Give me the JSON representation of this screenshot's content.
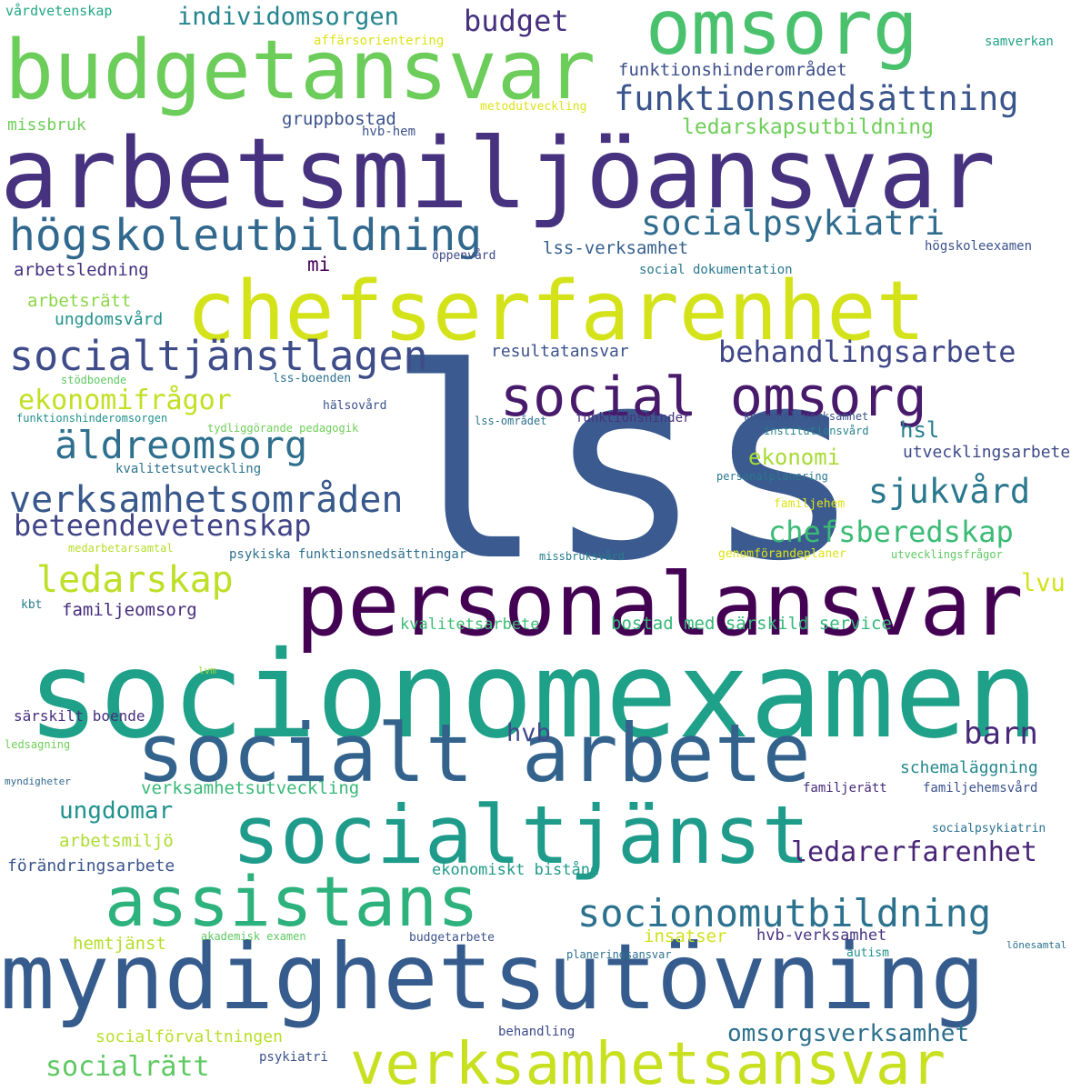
{
  "words": [
    {
      "text": "lss",
      "color": "#3b5a8f"
    },
    {
      "text": "socionomexamen",
      "color": "#1fa088"
    },
    {
      "text": "arbetsmiljöansvar",
      "color": "#46327e"
    },
    {
      "text": "myndighetsutövning",
      "color": "#365c8d"
    },
    {
      "text": "personalansvar",
      "color": "#440154"
    },
    {
      "text": "budgetansvar",
      "color": "#6ccd5a"
    },
    {
      "text": "chefserfarenhet",
      "color": "#d4e21a"
    },
    {
      "text": "socialtjänst",
      "color": "#1e9b8a"
    },
    {
      "text": "socialt arbete",
      "color": "#33638d"
    },
    {
      "text": "omsorg",
      "color": "#4ac16d"
    },
    {
      "text": "assistans",
      "color": "#2db27d"
    },
    {
      "text": "verksamhetsansvar",
      "color": "#c8e020"
    },
    {
      "text": "social omsorg",
      "color": "#481a6c"
    },
    {
      "text": "högskoleutbildning",
      "color": "#31688e"
    },
    {
      "text": "socialtjänstlagen",
      "color": "#3e4c8a"
    },
    {
      "text": "socionomutbildning",
      "color": "#2c728e"
    },
    {
      "text": "äldreomsorg",
      "color": "#2e6f8e"
    },
    {
      "text": "verksamhetsområden",
      "color": "#38588c"
    },
    {
      "text": "ledarskap",
      "color": "#bddf26"
    },
    {
      "text": "socialpsykiatri",
      "color": "#2f6c8e"
    },
    {
      "text": "funktionsnedsättning",
      "color": "#3a548c"
    },
    {
      "text": "sjukvård",
      "color": "#2a788e"
    },
    {
      "text": "behandlingsarbete",
      "color": "#3f4788"
    },
    {
      "text": "beteendevetenskap",
      "color": "#414487"
    },
    {
      "text": "chefsberedskap",
      "color": "#3bbb75"
    },
    {
      "text": "ekonomifrågor",
      "color": "#c2df23"
    },
    {
      "text": "ledarerfarenhet",
      "color": "#482576"
    },
    {
      "text": "omsorgsverksamhet",
      "color": "#2d708e"
    },
    {
      "text": "socialrätt",
      "color": "#5ec962"
    },
    {
      "text": "individomsorgen",
      "color": "#25858e"
    },
    {
      "text": "budget",
      "color": "#46307e"
    },
    {
      "text": "barn",
      "color": "#482979"
    },
    {
      "text": "ungdomar",
      "color": "#20928c"
    },
    {
      "text": "ledarskapsutbildning",
      "color": "#6ece58"
    },
    {
      "text": "hvb",
      "color": "#3e4989"
    },
    {
      "text": "hsl",
      "color": "#27808e"
    },
    {
      "text": "ekonomi",
      "color": "#a8db34"
    },
    {
      "text": "lvu",
      "color": "#d2e21b"
    },
    {
      "text": "funktionshinderområdet",
      "color": "#3d4e8a"
    },
    {
      "text": "gruppbostad",
      "color": "#3b528b"
    },
    {
      "text": "arbetsledning",
      "color": "#46337f"
    },
    {
      "text": "arbetsrätt",
      "color": "#8bd646"
    },
    {
      "text": "ungdomsvård",
      "color": "#21918c"
    },
    {
      "text": "mi",
      "color": "#440154"
    },
    {
      "text": "lss-verksamhet",
      "color": "#355f8d"
    },
    {
      "text": "resultatansvar",
      "color": "#3b528b"
    },
    {
      "text": "utvecklingsarbete",
      "color": "#3e4a89"
    },
    {
      "text": "familjeomsorg",
      "color": "#472c7a"
    },
    {
      "text": "kvalitetsarbete",
      "color": "#3fbc73"
    },
    {
      "text": "bostad med särskild service",
      "color": "#35b779"
    },
    {
      "text": "särskilt boende",
      "color": "#472f7d"
    },
    {
      "text": "schemaläggning",
      "color": "#23888e"
    },
    {
      "text": "verksamhetsutveckling",
      "color": "#38b977"
    },
    {
      "text": "arbetsmiljö",
      "color": "#addc30"
    },
    {
      "text": "förändringsarbete",
      "color": "#3a548c"
    },
    {
      "text": "ekonomiskt bistånd",
      "color": "#1f9a8a"
    },
    {
      "text": "hemtjänst",
      "color": "#b5de2b"
    },
    {
      "text": "insatser",
      "color": "#d0e11c"
    },
    {
      "text": "hvb-verksamhet",
      "color": "#46337f"
    },
    {
      "text": "socialförvaltningen",
      "color": "#b8de29"
    },
    {
      "text": "missbruk",
      "color": "#6ece58"
    },
    {
      "text": "vårdvetenskap",
      "color": "#22a884"
    },
    {
      "text": "affärsorientering",
      "color": "#dde318"
    },
    {
      "text": "samverkan",
      "color": "#1fa187"
    },
    {
      "text": "metodutveckling",
      "color": "#dde318"
    },
    {
      "text": "hvb-hem",
      "color": "#3b528b"
    },
    {
      "text": "högskoleexamen",
      "color": "#3b528b"
    },
    {
      "text": "öppenvård",
      "color": "#3e4a89"
    },
    {
      "text": "social dokumentation",
      "color": "#2a788e"
    },
    {
      "text": "stödboende",
      "color": "#5ec962"
    },
    {
      "text": "lss-boenden",
      "color": "#2d708e"
    },
    {
      "text": "hälsovård",
      "color": "#3b528b"
    },
    {
      "text": "funktionshinderomsorgen",
      "color": "#21918c"
    },
    {
      "text": "tydliggörande pedagogik",
      "color": "#6ece58"
    },
    {
      "text": "lss-området",
      "color": "#2c728e"
    },
    {
      "text": "funktionshinder",
      "color": "#46337f"
    },
    {
      "text": "kommunal verksamhet",
      "color": "#3b528b"
    },
    {
      "text": "institutionsvård",
      "color": "#26828e"
    },
    {
      "text": "kvalitetsutveckling",
      "color": "#2c728e"
    },
    {
      "text": "personalplanering",
      "color": "#2a788e"
    },
    {
      "text": "familjehem",
      "color": "#dde318"
    },
    {
      "text": "medarbetarsamtal",
      "color": "#b5de2b"
    },
    {
      "text": "psykiska funktionsnedsättningar",
      "color": "#2d708e"
    },
    {
      "text": "missbruksvård",
      "color": "#287d8e"
    },
    {
      "text": "genomförandeplaner",
      "color": "#dde318"
    },
    {
      "text": "utvecklingsfrågor",
      "color": "#5ec962"
    },
    {
      "text": "kbt",
      "color": "#287d8e"
    },
    {
      "text": "lvm",
      "color": "#a0da39"
    },
    {
      "text": "ledsagning",
      "color": "#6ece58"
    },
    {
      "text": "myndigheter",
      "color": "#31688e"
    },
    {
      "text": "familjerätt",
      "color": "#472c7a"
    },
    {
      "text": "familjehemsvård",
      "color": "#3b528b"
    },
    {
      "text": "socialpsykiatrin",
      "color": "#2c728e"
    },
    {
      "text": "akademisk examen",
      "color": "#5ec962"
    },
    {
      "text": "budgetarbete",
      "color": "#3b528b"
    },
    {
      "text": "planeringsansvar",
      "color": "#2d708e"
    },
    {
      "text": "autism",
      "color": "#21918c"
    },
    {
      "text": "lönesamtal",
      "color": "#2c728e"
    },
    {
      "text": "behandling",
      "color": "#3e4a89"
    },
    {
      "text": "psykiatri",
      "color": "#3b528b"
    }
  ]
}
